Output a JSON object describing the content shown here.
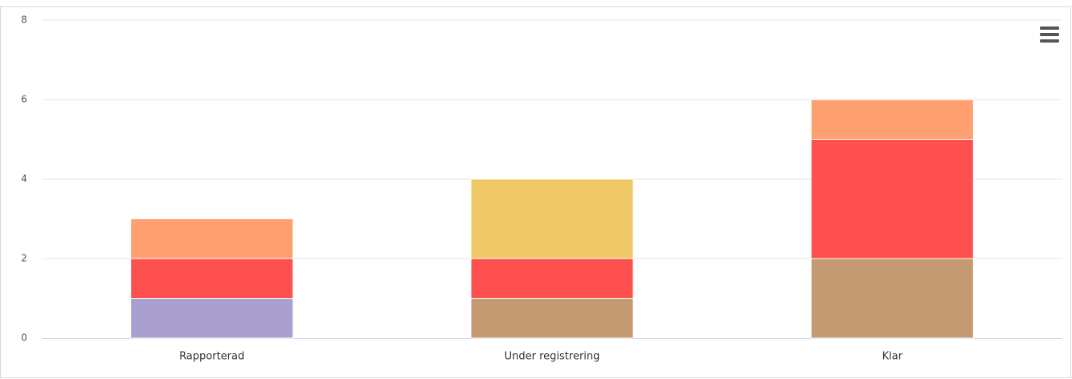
{
  "chart_data": {
    "type": "stacked_bar",
    "categories": [
      "Rapporterad",
      "Under registrering",
      "Klar"
    ],
    "series": [
      {
        "color": "#a9a0d0",
        "values": [
          1,
          0,
          0
        ]
      },
      {
        "color": "#c49a72",
        "values": [
          0,
          1,
          2
        ]
      },
      {
        "color": "#ff5050",
        "values": [
          1,
          1,
          3
        ]
      },
      {
        "color": "#efc967",
        "values": [
          0,
          2,
          0
        ]
      },
      {
        "color": "#ffa070",
        "values": [
          1,
          0,
          1
        ]
      }
    ],
    "ylim": [
      0,
      8
    ],
    "yticks": [
      0,
      2,
      4,
      6,
      8
    ],
    "grid": true
  }
}
